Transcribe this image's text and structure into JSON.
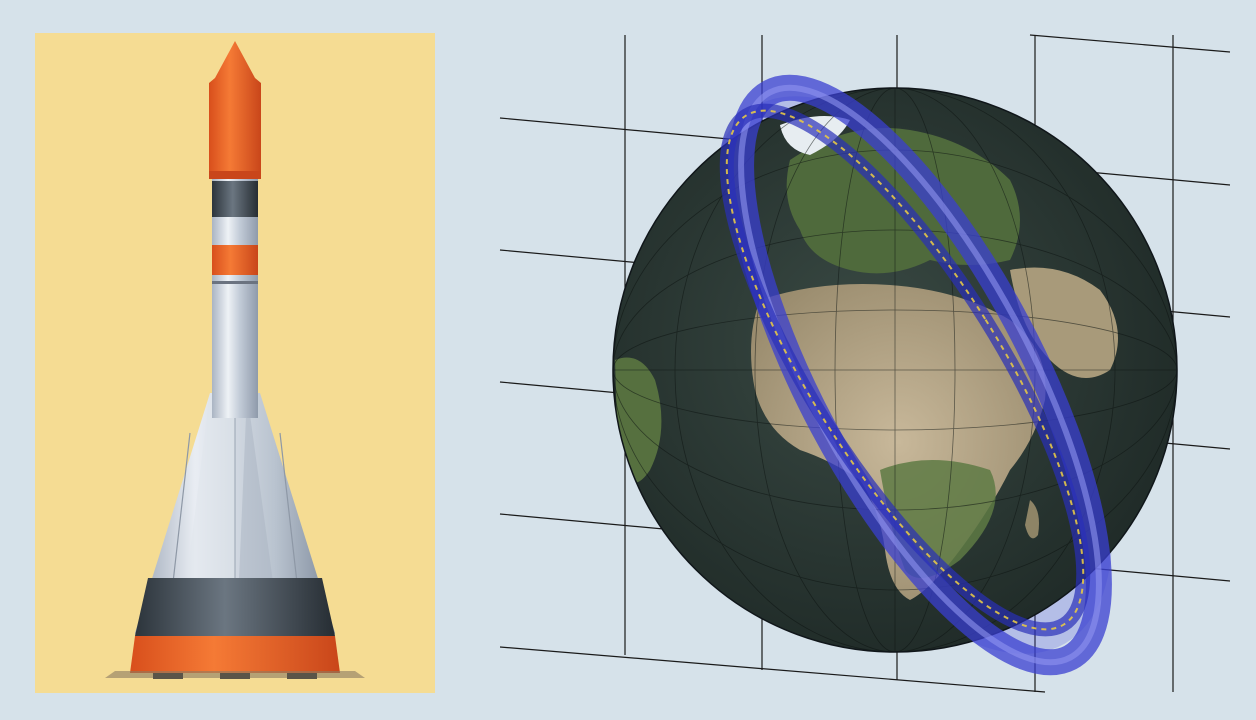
{
  "figure": {
    "left_panel": {
      "subject": "rocket-illustration",
      "background": "#f5dc93"
    },
    "right_panel": {
      "subject": "earth-globe-with-orbit-rings",
      "background": "#d6e2ea"
    }
  },
  "colors": {
    "page_background": "#d6e2ea",
    "rocket_nose": "#e8642a",
    "rocket_body": "#c9d1dc",
    "rocket_band_dark": "#3e4850",
    "ocean": "#2d3a36",
    "land": "#a79d82",
    "vegetation": "#4f6a3c",
    "orbit_ring": "#3a3fd0",
    "orbit_track": "#e6c847"
  }
}
